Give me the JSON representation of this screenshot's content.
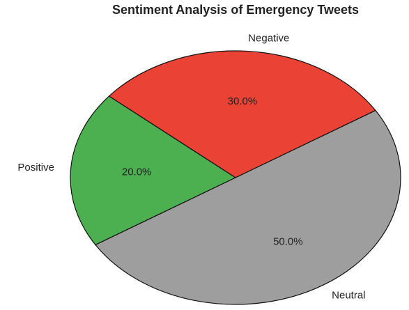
{
  "chart_data": {
    "type": "pie",
    "title": "Sentiment Analysis of Emergency Tweets",
    "categories": [
      "Negative",
      "Positive",
      "Neutral"
    ],
    "values": [
      30,
      20,
      50
    ],
    "value_labels": [
      "30.0%",
      "20.0%",
      "50.0%"
    ],
    "colors": [
      "#ea4335",
      "#4caf50",
      "#9e9e9e"
    ]
  }
}
